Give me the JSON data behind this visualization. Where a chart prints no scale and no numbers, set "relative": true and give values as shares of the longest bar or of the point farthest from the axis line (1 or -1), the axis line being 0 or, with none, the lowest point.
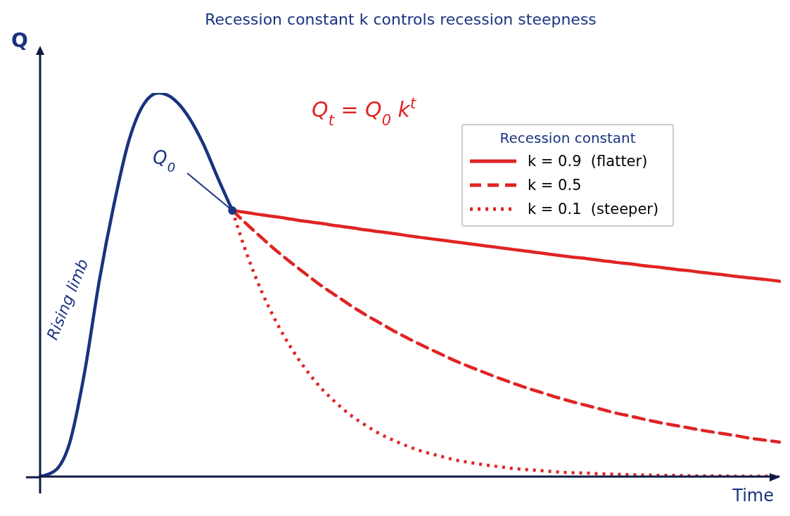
{
  "chart_data": {
    "type": "line",
    "title": "Recession constant k controls recession steepness",
    "xlabel": "Time",
    "ylabel": "Q",
    "relative": true,
    "legend": "top right",
    "legend_title": "Recession constant",
    "grid": false,
    "marker": "none",
    "categories": [
      null,
      null,
      null,
      null,
      null,
      null,
      null,
      null,
      null,
      null,
      null,
      null,
      null,
      null,
      null,
      null,
      null,
      null,
      null,
      null,
      null,
      null,
      null,
      null,
      null,
      null,
      null,
      null,
      null,
      null,
      null,
      null,
      null,
      null,
      null,
      null,
      null,
      null,
      null,
      null,
      null,
      null,
      null,
      null,
      null,
      null,
      null,
      null,
      null,
      null,
      null
    ],
    "annotations": [
      "Q$_{t}$ = Q$_{0}$ k$^{t}$",
      "Q$_{0}$"
    ],
    "series": [
      {
        "name": "Rising limb",
        "color": "#1a3380",
        "line_style": "solid",
        "values": [
          0,
          0.015,
          0.088,
          0.27,
          0.51,
          0.71,
          0.875,
          0.97,
          1.0,
          0.985,
          0.94,
          0.87,
          0.78,
          0.694,
          null,
          null,
          null,
          null,
          null,
          null,
          null,
          null,
          null,
          null,
          null,
          null,
          null,
          null,
          null,
          null,
          null,
          null,
          null,
          null,
          null,
          null,
          null,
          null,
          null,
          null,
          null,
          null,
          null,
          null,
          null,
          null,
          null,
          null,
          null,
          null,
          null
        ]
      },
      {
        "name": "k = 0.9  (flatter)",
        "color": "#e02424",
        "line_style": "solid",
        "values": [
          null,
          null,
          null,
          null,
          null,
          null,
          null,
          null,
          null,
          null,
          null,
          null,
          null,
          0.694,
          0.688,
          0.682,
          0.677,
          0.671,
          0.665,
          0.66,
          0.654,
          0.649,
          0.643,
          0.638,
          0.633,
          0.627,
          0.622,
          0.617,
          0.612,
          0.607,
          0.602,
          0.597,
          0.592,
          0.587,
          0.582,
          0.577,
          0.572,
          0.568,
          0.563,
          0.558,
          0.554,
          0.549,
          0.545,
          0.54,
          0.536,
          0.531,
          0.527,
          0.522,
          0.518,
          0.514,
          0.509
        ]
      },
      {
        "name": "k = 0.5",
        "color": "#e02424",
        "line_style": "dashed",
        "values": [
          null,
          null,
          null,
          null,
          null,
          null,
          null,
          null,
          null,
          null,
          null,
          null,
          null,
          0.694,
          0.657,
          0.622,
          0.588,
          0.557,
          0.527,
          0.498,
          0.472,
          0.446,
          0.422,
          0.4,
          0.378,
          0.358,
          0.339,
          0.321,
          0.303,
          0.287,
          0.272,
          0.257,
          0.243,
          0.23,
          0.218,
          0.206,
          0.195,
          0.185,
          0.175,
          0.165,
          0.157,
          0.148,
          0.14,
          0.133,
          0.126,
          0.119,
          0.113,
          0.107,
          0.1,
          0.095,
          0.09
        ]
      },
      {
        "name": "k = 0.1  (steeper)",
        "color": "#e02424",
        "line_style": "dotted",
        "values": [
          null,
          null,
          null,
          null,
          null,
          null,
          null,
          null,
          null,
          null,
          null,
          null,
          null,
          0.694,
          0.578,
          0.481,
          0.401,
          0.334,
          0.278,
          0.231,
          0.193,
          0.16,
          0.134,
          0.111,
          0.093,
          0.077,
          0.064,
          0.054,
          0.044,
          0.037,
          0.031,
          0.026,
          0.021,
          0.018,
          0.015,
          0.012,
          0.01,
          0.009,
          0.007,
          0.006,
          0.005,
          0.004,
          0.003,
          0.003,
          0.002,
          0.002,
          0.002,
          0.001,
          0.001,
          0.001,
          0.001
        ]
      }
    ]
  }
}
